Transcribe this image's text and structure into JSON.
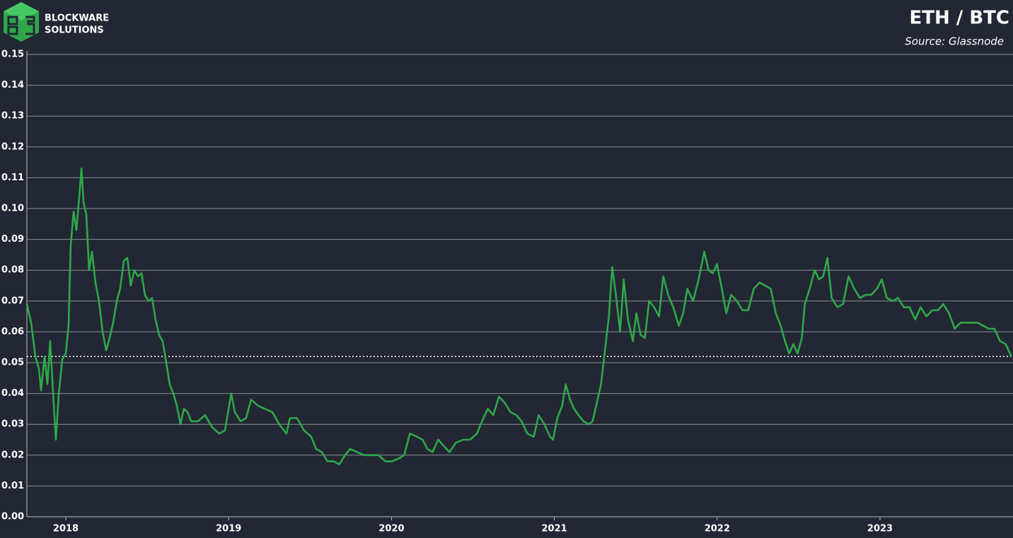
{
  "brand": [
    "BLOCKWARE",
    "SOLUTIONS"
  ],
  "chart_data": {
    "type": "line",
    "title": "ETH / BTC",
    "subtitle": "Source: Glassnode",
    "color": "#2ea84a",
    "grid": true,
    "reference_line": 0.052,
    "xlim": [
      2017.761,
      2023.808
    ],
    "xticks": [
      2018,
      2019,
      2020,
      2021,
      2022,
      2023
    ],
    "ylim": [
      0,
      0.15
    ],
    "yticks": [
      {
        "value": 0,
        "label": "0.00"
      },
      0.01,
      0.02,
      0.03,
      0.04,
      0.05,
      0.06,
      0.07,
      0.08,
      0.09,
      {
        "value": 0.1,
        "label": "0.10"
      },
      0.11,
      0.12,
      0.13,
      0.14,
      0.15
    ],
    "x": [
      2017.761,
      2017.787,
      2017.813,
      2017.835,
      2017.848,
      2017.87,
      2017.887,
      2017.904,
      2017.922,
      2017.939,
      2017.957,
      2017.978,
      2018.0,
      2018.017,
      2018.03,
      2018.048,
      2018.065,
      2018.083,
      2018.096,
      2018.109,
      2018.126,
      2018.143,
      2018.161,
      2018.182,
      2018.204,
      2018.226,
      2018.248,
      2018.269,
      2018.291,
      2018.313,
      2018.334,
      2018.356,
      2018.378,
      2018.399,
      2018.421,
      2018.443,
      2018.465,
      2018.486,
      2018.508,
      2018.53,
      2018.551,
      2018.573,
      2018.595,
      2018.617,
      2018.638,
      2018.66,
      2018.682,
      2018.704,
      2018.725,
      2018.747,
      2018.769,
      2018.812,
      2018.855,
      2018.899,
      2018.942,
      2018.977,
      2019.0,
      2019.016,
      2019.038,
      2019.073,
      2019.107,
      2019.138,
      2019.181,
      2019.224,
      2019.268,
      2019.311,
      2019.355,
      2019.376,
      2019.42,
      2019.463,
      2019.507,
      2019.537,
      2019.572,
      2019.607,
      2019.646,
      2019.68,
      2019.715,
      2019.746,
      2019.789,
      2019.832,
      2019.876,
      2019.919,
      2019.963,
      2020.004,
      2020.048,
      2020.078,
      2020.113,
      2020.156,
      2020.191,
      2020.221,
      2020.252,
      2020.287,
      2020.321,
      2020.356,
      2020.395,
      2020.439,
      2020.482,
      2020.525,
      2020.556,
      2020.591,
      2020.625,
      2020.66,
      2020.695,
      2020.73,
      2020.766,
      2020.799,
      2020.834,
      2020.874,
      2020.904,
      2020.939,
      2020.974,
      2020.992,
      2021.018,
      2021.048,
      2021.07,
      2021.096,
      2021.122,
      2021.148,
      2021.179,
      2021.213,
      2021.235,
      2021.257,
      2021.287,
      2021.313,
      2021.335,
      2021.356,
      2021.378,
      2021.404,
      2021.426,
      2021.452,
      2021.482,
      2021.504,
      2021.53,
      2021.556,
      2021.582,
      2021.613,
      2021.643,
      2021.669,
      2021.699,
      2021.73,
      2021.765,
      2021.791,
      2021.817,
      2021.852,
      2021.886,
      2021.921,
      2021.947,
      2021.973,
      2021.999,
      2022.025,
      2022.056,
      2022.086,
      2022.121,
      2022.156,
      2022.19,
      2022.225,
      2022.26,
      2022.295,
      2022.329,
      2022.36,
      2022.39,
      2022.416,
      2022.442,
      2022.468,
      2022.494,
      2022.52,
      2022.538,
      2022.568,
      2022.599,
      2022.625,
      2022.651,
      2022.677,
      2022.703,
      2022.738,
      2022.773,
      2022.807,
      2022.842,
      2022.877,
      2022.912,
      2022.946,
      2022.981,
      2023.011,
      2023.042,
      2023.077,
      2023.111,
      2023.146,
      2023.181,
      2023.216,
      2023.25,
      2023.285,
      2023.32,
      2023.355,
      2023.389,
      2023.424,
      2023.459,
      2023.494,
      2023.529,
      2023.563,
      2023.598,
      2023.633,
      2023.668,
      2023.702,
      2023.737,
      2023.772,
      2023.807
    ],
    "values": [
      0.069,
      0.063,
      0.052,
      0.048,
      0.041,
      0.052,
      0.043,
      0.057,
      0.04,
      0.025,
      0.04,
      0.051,
      0.053,
      0.062,
      0.088,
      0.099,
      0.093,
      0.104,
      0.113,
      0.102,
      0.098,
      0.08,
      0.086,
      0.076,
      0.07,
      0.06,
      0.054,
      0.058,
      0.063,
      0.07,
      0.074,
      0.083,
      0.084,
      0.075,
      0.08,
      0.078,
      0.079,
      0.072,
      0.07,
      0.071,
      0.064,
      0.059,
      0.057,
      0.05,
      0.043,
      0.04,
      0.036,
      0.03,
      0.035,
      0.034,
      0.031,
      0.031,
      0.033,
      0.029,
      0.027,
      0.028,
      0.035,
      0.04,
      0.034,
      0.031,
      0.032,
      0.038,
      0.036,
      0.035,
      0.034,
      0.03,
      0.027,
      0.032,
      0.032,
      0.028,
      0.026,
      0.022,
      0.021,
      0.018,
      0.018,
      0.017,
      0.02,
      0.022,
      0.021,
      0.02,
      0.02,
      0.02,
      0.018,
      0.018,
      0.019,
      0.02,
      0.027,
      0.026,
      0.025,
      0.022,
      0.021,
      0.025,
      0.023,
      0.021,
      0.024,
      0.025,
      0.025,
      0.027,
      0.031,
      0.035,
      0.033,
      0.039,
      0.037,
      0.034,
      0.033,
      0.031,
      0.027,
      0.026,
      0.033,
      0.03,
      0.026,
      0.025,
      0.032,
      0.036,
      0.043,
      0.038,
      0.035,
      0.033,
      0.031,
      0.03,
      0.031,
      0.036,
      0.043,
      0.055,
      0.065,
      0.081,
      0.072,
      0.06,
      0.077,
      0.064,
      0.057,
      0.066,
      0.059,
      0.058,
      0.07,
      0.068,
      0.065,
      0.078,
      0.072,
      0.068,
      0.062,
      0.066,
      0.074,
      0.07,
      0.077,
      0.086,
      0.08,
      0.079,
      0.082,
      0.075,
      0.066,
      0.072,
      0.07,
      0.067,
      0.067,
      0.074,
      0.076,
      0.075,
      0.074,
      0.066,
      0.062,
      0.057,
      0.053,
      0.056,
      0.053,
      0.058,
      0.069,
      0.074,
      0.08,
      0.077,
      0.078,
      0.084,
      0.071,
      0.068,
      0.069,
      0.078,
      0.074,
      0.071,
      0.072,
      0.072,
      0.074,
      0.077,
      0.071,
      0.07,
      0.071,
      0.068,
      0.068,
      0.064,
      0.068,
      0.065,
      0.067,
      0.067,
      0.069,
      0.066,
      0.061,
      0.063,
      0.063,
      0.063,
      0.063,
      0.062,
      0.061,
      0.061,
      0.057,
      0.056,
      0.052
    ]
  }
}
